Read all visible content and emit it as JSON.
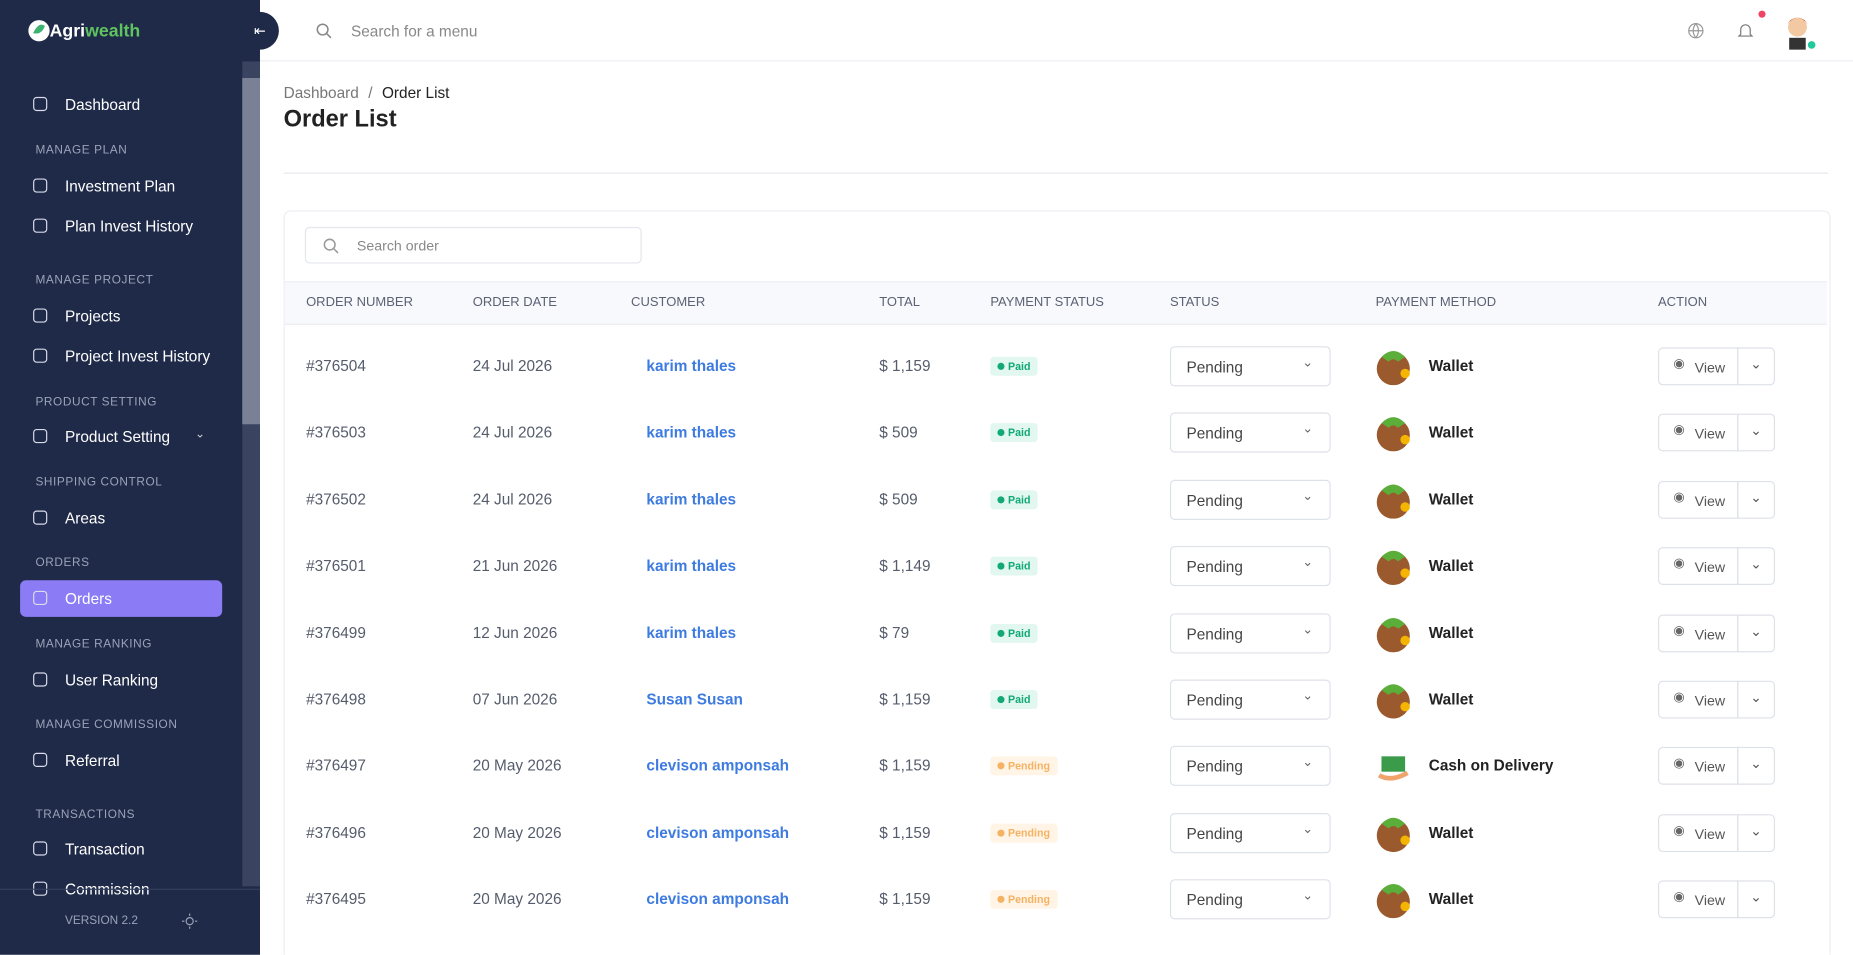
{
  "brand": {
    "first": "Agri",
    "second": "wealth"
  },
  "sidebar": {
    "items": [
      {
        "kind": "item",
        "label": "Dashboard"
      },
      {
        "kind": "section",
        "label": "MANAGE PLAN"
      },
      {
        "kind": "item",
        "label": "Investment Plan"
      },
      {
        "kind": "item",
        "label": "Plan Invest History"
      },
      {
        "kind": "section",
        "label": "MANAGE PROJECT"
      },
      {
        "kind": "item",
        "label": "Projects"
      },
      {
        "kind": "item",
        "label": "Project Invest History"
      },
      {
        "kind": "section",
        "label": "PRODUCT SETTING"
      },
      {
        "kind": "item",
        "label": "Product Setting",
        "expandable": true
      },
      {
        "kind": "section",
        "label": "SHIPPING CONTROL"
      },
      {
        "kind": "item",
        "label": "Areas"
      },
      {
        "kind": "section",
        "label": "ORDERS"
      },
      {
        "kind": "item",
        "label": "Orders",
        "active": true
      },
      {
        "kind": "section",
        "label": "MANAGE RANKING"
      },
      {
        "kind": "item",
        "label": "User Ranking"
      },
      {
        "kind": "section",
        "label": "MANAGE COMMISSION"
      },
      {
        "kind": "item",
        "label": "Referral"
      },
      {
        "kind": "section",
        "label": "TRANSACTIONS"
      },
      {
        "kind": "item",
        "label": "Transaction"
      },
      {
        "kind": "item",
        "label": "Commission"
      }
    ],
    "version": "VERSION 2.2"
  },
  "header": {
    "search_placeholder": "Search for a menu"
  },
  "breadcrumb": [
    "Dashboard",
    "Order List"
  ],
  "page_title": "Order List",
  "table": {
    "search_placeholder": "Search order",
    "columns": [
      "ORDER NUMBER",
      "ORDER DATE",
      "CUSTOMER",
      "TOTAL",
      "PAYMENT STATUS",
      "STATUS",
      "PAYMENT METHOD",
      "ACTION"
    ],
    "rows": [
      [
        "#376504",
        "24 Jul 2026",
        "karim thales",
        "$ 1,159",
        "Paid",
        "Pending",
        "Wallet",
        "View"
      ],
      [
        "#376503",
        "24 Jul 2026",
        "karim thales",
        "$ 509",
        "Paid",
        "Pending",
        "Wallet",
        "View"
      ],
      [
        "#376502",
        "24 Jul 2026",
        "karim thales",
        "$ 509",
        "Paid",
        "Pending",
        "Wallet",
        "View"
      ],
      [
        "#376501",
        "21 Jun 2026",
        "karim thales",
        "$ 1,149",
        "Paid",
        "Pending",
        "Wallet",
        "View"
      ],
      [
        "#376499",
        "12 Jun 2026",
        "karim thales",
        "$ 79",
        "Paid",
        "Pending",
        "Wallet",
        "View"
      ],
      [
        "#376498",
        "07 Jun 2026",
        "Susan Susan",
        "$ 1,159",
        "Paid",
        "Pending",
        "Wallet",
        "View"
      ],
      [
        "#376497",
        "20 May 2026",
        "clevison amponsah",
        "$ 1,159",
        "Pending",
        "Pending",
        "Cash on Delivery",
        "View"
      ],
      [
        "#376496",
        "20 May 2026",
        "clevison amponsah",
        "$ 1,159",
        "Pending",
        "Pending",
        "Wallet",
        "View"
      ],
      [
        "#376495",
        "20 May 2026",
        "clevison amponsah",
        "$ 1,159",
        "Pending",
        "Pending",
        "Wallet",
        "View"
      ]
    ]
  }
}
